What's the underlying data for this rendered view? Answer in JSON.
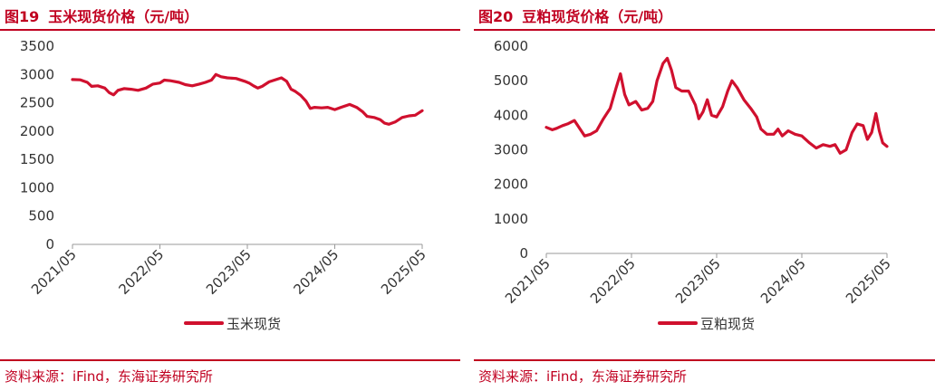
{
  "colors": {
    "accent": "#c00020",
    "series": "#d0102e",
    "text": "#333333",
    "axis": "#999999"
  },
  "panels": [
    {
      "title_num": "图19",
      "title_text": "玉米现货价格（元/吨）",
      "source": "资料来源：iFind，东海证券研究所"
    },
    {
      "title_num": "图20",
      "title_text": "豆粕现货价格（元/吨）",
      "source": "资料来源：iFind，东海证券研究所"
    }
  ],
  "chart_data": [
    {
      "type": "line",
      "title": "",
      "xlabel": "",
      "ylabel": "",
      "ylim": [
        0,
        3500
      ],
      "yticks": [
        0,
        500,
        1000,
        1500,
        2000,
        2500,
        3000,
        3500
      ],
      "ytick_labels": [
        "0",
        "500",
        "1000",
        "1500",
        "2000",
        "2500",
        "3000",
        "3500"
      ],
      "xlim": [
        2021.33,
        2025.33
      ],
      "xticks": [
        2021.33,
        2022.33,
        2023.33,
        2024.33,
        2025.33
      ],
      "xtick_labels": [
        "2021/05",
        "2022/05",
        "2023/05",
        "2024/05",
        "2025/05"
      ],
      "grid": false,
      "legend_position": "bottom",
      "series": [
        {
          "name": "玉米现货",
          "points": [
            [
              2021.33,
              2910
            ],
            [
              2021.42,
              2905
            ],
            [
              2021.5,
              2860
            ],
            [
              2021.55,
              2790
            ],
            [
              2021.62,
              2800
            ],
            [
              2021.7,
              2760
            ],
            [
              2021.75,
              2680
            ],
            [
              2021.8,
              2640
            ],
            [
              2021.85,
              2720
            ],
            [
              2021.92,
              2750
            ],
            [
              2022.0,
              2740
            ],
            [
              2022.08,
              2720
            ],
            [
              2022.17,
              2760
            ],
            [
              2022.25,
              2830
            ],
            [
              2022.33,
              2850
            ],
            [
              2022.38,
              2900
            ],
            [
              2022.45,
              2890
            ],
            [
              2022.55,
              2860
            ],
            [
              2022.62,
              2820
            ],
            [
              2022.7,
              2800
            ],
            [
              2022.78,
              2830
            ],
            [
              2022.85,
              2860
            ],
            [
              2022.92,
              2900
            ],
            [
              2022.97,
              3000
            ],
            [
              2023.03,
              2960
            ],
            [
              2023.1,
              2940
            ],
            [
              2023.2,
              2930
            ],
            [
              2023.3,
              2880
            ],
            [
              2023.35,
              2850
            ],
            [
              2023.4,
              2800
            ],
            [
              2023.45,
              2760
            ],
            [
              2023.5,
              2790
            ],
            [
              2023.58,
              2870
            ],
            [
              2023.66,
              2910
            ],
            [
              2023.72,
              2940
            ],
            [
              2023.78,
              2880
            ],
            [
              2023.83,
              2740
            ],
            [
              2023.88,
              2700
            ],
            [
              2023.94,
              2630
            ],
            [
              2024.0,
              2530
            ],
            [
              2024.05,
              2400
            ],
            [
              2024.1,
              2420
            ],
            [
              2024.18,
              2410
            ],
            [
              2024.25,
              2420
            ],
            [
              2024.33,
              2380
            ],
            [
              2024.4,
              2420
            ],
            [
              2024.5,
              2470
            ],
            [
              2024.58,
              2420
            ],
            [
              2024.65,
              2340
            ],
            [
              2024.7,
              2260
            ],
            [
              2024.78,
              2240
            ],
            [
              2024.85,
              2200
            ],
            [
              2024.9,
              2140
            ],
            [
              2024.95,
              2120
            ],
            [
              2025.02,
              2160
            ],
            [
              2025.1,
              2240
            ],
            [
              2025.18,
              2270
            ],
            [
              2025.25,
              2280
            ],
            [
              2025.33,
              2360
            ]
          ]
        }
      ]
    },
    {
      "type": "line",
      "title": "",
      "xlabel": "",
      "ylabel": "",
      "ylim": [
        0,
        6000
      ],
      "yticks": [
        0,
        1000,
        2000,
        3000,
        4000,
        5000,
        6000
      ],
      "ytick_labels": [
        "0",
        "1000",
        "2000",
        "3000",
        "4000",
        "5000",
        "6000"
      ],
      "xlim": [
        2021.33,
        2025.33
      ],
      "xticks": [
        2021.33,
        2022.33,
        2023.33,
        2024.33,
        2025.33
      ],
      "xtick_labels": [
        "2021/05",
        "2022/05",
        "2023/05",
        "2024/05",
        "2025/05"
      ],
      "grid": false,
      "legend_position": "bottom",
      "series": [
        {
          "name": "豆粕现货",
          "points": [
            [
              2021.33,
              3650
            ],
            [
              2021.4,
              3580
            ],
            [
              2021.45,
              3620
            ],
            [
              2021.52,
              3700
            ],
            [
              2021.58,
              3750
            ],
            [
              2021.66,
              3850
            ],
            [
              2021.72,
              3620
            ],
            [
              2021.78,
              3400
            ],
            [
              2021.85,
              3450
            ],
            [
              2021.92,
              3550
            ],
            [
              2022.0,
              3900
            ],
            [
              2022.08,
              4200
            ],
            [
              2022.15,
              4800
            ],
            [
              2022.2,
              5200
            ],
            [
              2022.25,
              4600
            ],
            [
              2022.3,
              4300
            ],
            [
              2022.38,
              4400
            ],
            [
              2022.45,
              4150
            ],
            [
              2022.52,
              4200
            ],
            [
              2022.58,
              4400
            ],
            [
              2022.63,
              5000
            ],
            [
              2022.7,
              5500
            ],
            [
              2022.75,
              5650
            ],
            [
              2022.8,
              5300
            ],
            [
              2022.85,
              4800
            ],
            [
              2022.92,
              4700
            ],
            [
              2023.0,
              4700
            ],
            [
              2023.08,
              4300
            ],
            [
              2023.12,
              3900
            ],
            [
              2023.17,
              4100
            ],
            [
              2023.22,
              4450
            ],
            [
              2023.27,
              4000
            ],
            [
              2023.33,
              3950
            ],
            [
              2023.4,
              4250
            ],
            [
              2023.46,
              4700
            ],
            [
              2023.51,
              5000
            ],
            [
              2023.57,
              4800
            ],
            [
              2023.65,
              4450
            ],
            [
              2023.73,
              4200
            ],
            [
              2023.8,
              3950
            ],
            [
              2023.85,
              3600
            ],
            [
              2023.92,
              3450
            ],
            [
              2024.0,
              3450
            ],
            [
              2024.05,
              3600
            ],
            [
              2024.1,
              3400
            ],
            [
              2024.17,
              3550
            ],
            [
              2024.25,
              3450
            ],
            [
              2024.33,
              3400
            ],
            [
              2024.42,
              3200
            ],
            [
              2024.5,
              3050
            ],
            [
              2024.58,
              3150
            ],
            [
              2024.66,
              3100
            ],
            [
              2024.72,
              3150
            ],
            [
              2024.78,
              2900
            ],
            [
              2024.85,
              3000
            ],
            [
              2024.92,
              3500
            ],
            [
              2024.98,
              3750
            ],
            [
              2025.05,
              3700
            ],
            [
              2025.1,
              3300
            ],
            [
              2025.15,
              3500
            ],
            [
              2025.2,
              4050
            ],
            [
              2025.24,
              3550
            ],
            [
              2025.28,
              3200
            ],
            [
              2025.33,
              3100
            ]
          ]
        }
      ]
    }
  ]
}
